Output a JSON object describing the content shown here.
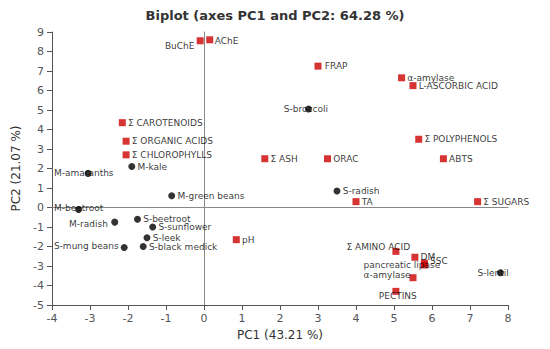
{
  "chart_data": {
    "type": "scatter",
    "title": "Biplot (axes PC1 and PC2: 64.28 %)",
    "xlabel": "PC1 (43.21 %)",
    "ylabel": "PC2 (21.07 %)",
    "xlim": [
      -4,
      8
    ],
    "ylim": [
      -5,
      9
    ],
    "xticks": [
      -4,
      -3,
      -2,
      -1,
      0,
      1,
      2,
      3,
      4,
      5,
      6,
      7,
      8
    ],
    "yticks": [
      -5,
      -4,
      -3,
      -2,
      -1,
      0,
      1,
      2,
      3,
      4,
      5,
      6,
      7,
      8,
      9
    ],
    "grid": false,
    "series": [
      {
        "color": "#cc0000",
        "marker": "square",
        "x": [
          0.15,
          -0.1,
          3.0,
          5.5,
          5.2,
          1.6,
          -2.15,
          -2.05,
          -2.05,
          5.65,
          3.25,
          6.3,
          4.0,
          7.2,
          5.05,
          5.55,
          5.8,
          5.8,
          5.5,
          5.05,
          0.85
        ],
        "values": [
          8.6,
          8.55,
          7.25,
          6.25,
          6.65,
          2.5,
          4.35,
          3.4,
          2.7,
          3.5,
          2.5,
          2.5,
          0.3,
          0.3,
          -2.25,
          -2.55,
          -2.85,
          -2.95,
          -3.6,
          -4.3,
          -1.65
        ],
        "labels": [
          "AChE",
          "BuChE",
          "FRAP",
          "L-ASCORBIC ACID",
          "α-amylase",
          "Σ ASH",
          "Σ CAROTENOIDS",
          "Σ ORGANIC ACIDS",
          "Σ CHLOROPHYLLS",
          "Σ POLYPHENOLS",
          "ORAC",
          "ABTS",
          "TA",
          "Σ SUGARS",
          "Σ AMINO ACID",
          "DM",
          "pancreatic lipase",
          "SSC",
          "α-amylase",
          "PECTINS",
          "pH"
        ],
        "label_x": [
          0.28,
          -0.25,
          3.18,
          5.65,
          5.35,
          1.75,
          -2.0,
          -1.9,
          -1.9,
          5.8,
          3.4,
          6.45,
          4.15,
          7.35,
          3.75,
          5.7,
          4.2,
          5.95,
          4.2,
          4.6,
          1.0
        ],
        "label_y": [
          8.55,
          8.3,
          7.25,
          6.25,
          6.65,
          2.5,
          4.35,
          3.4,
          2.7,
          3.5,
          2.5,
          2.5,
          0.3,
          0.3,
          -2.0,
          -2.55,
          -2.95,
          -2.75,
          -3.45,
          -4.55,
          -1.65
        ]
      },
      {
        "color": "#000000",
        "marker": "circle",
        "x": [
          -1.9,
          -3.05,
          -0.85,
          -3.3,
          -2.35,
          -2.1,
          3.5,
          2.75,
          -1.75,
          -1.35,
          -1.5,
          -1.6,
          7.8
        ],
        "values": [
          2.1,
          1.75,
          0.6,
          -0.1,
          -0.75,
          -2.05,
          0.85,
          5.05,
          -0.6,
          -1.0,
          -1.55,
          -2.0,
          -3.35
        ],
        "labels": [
          "M-kale",
          "M-amaranths",
          "M-green beans",
          "M-beetroot",
          "M-radish",
          "S-mung beans",
          "S-radish",
          "S-broccoli",
          "S-beetroot",
          "S-sunflower",
          "S-leek",
          "S-black medick",
          "S-lentil"
        ],
        "label_x": [
          -1.75,
          -3.95,
          -0.7,
          -3.95,
          -3.55,
          -3.95,
          3.65,
          2.1,
          -1.6,
          -1.2,
          -1.35,
          -1.45,
          7.2
        ],
        "label_y": [
          2.1,
          1.75,
          0.6,
          -0.05,
          -0.85,
          -1.95,
          0.85,
          5.05,
          -0.6,
          -1.0,
          -1.55,
          -2.0,
          -3.35
        ]
      }
    ]
  }
}
